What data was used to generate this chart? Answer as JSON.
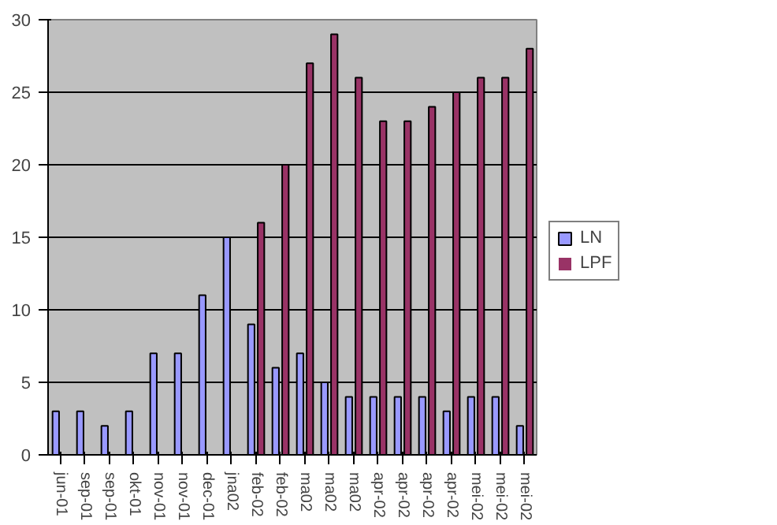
{
  "chart_data": {
    "type": "bar",
    "categories": [
      "jun-01",
      "sep-01",
      "sep-01",
      "okt-01",
      "nov-01",
      "nov-01",
      "dec-01",
      "jna02",
      "feb-02",
      "feb-02",
      "ma02",
      "ma02",
      "ma02",
      "apr-02",
      "apr-02",
      "apr-02",
      "apr-02",
      "mei-02",
      "mei-02",
      "mei-02"
    ],
    "series": [
      {
        "name": "LN",
        "color": "#9999ff",
        "values": [
          3,
          3,
          2,
          3,
          7,
          7,
          11,
          15,
          9,
          6,
          7,
          5,
          4,
          4,
          4,
          4,
          3,
          4,
          4,
          2
        ]
      },
      {
        "name": "LPF",
        "color": "#993366",
        "values": [
          0,
          0,
          0,
          0,
          0,
          0,
          0,
          0,
          16,
          20,
          27,
          29,
          26,
          23,
          23,
          24,
          25,
          26,
          26,
          28
        ]
      }
    ],
    "ylim": [
      0,
      30
    ],
    "yticks": [
      0,
      5,
      10,
      15,
      20,
      25,
      30
    ],
    "grid": "y",
    "legend": "right"
  }
}
